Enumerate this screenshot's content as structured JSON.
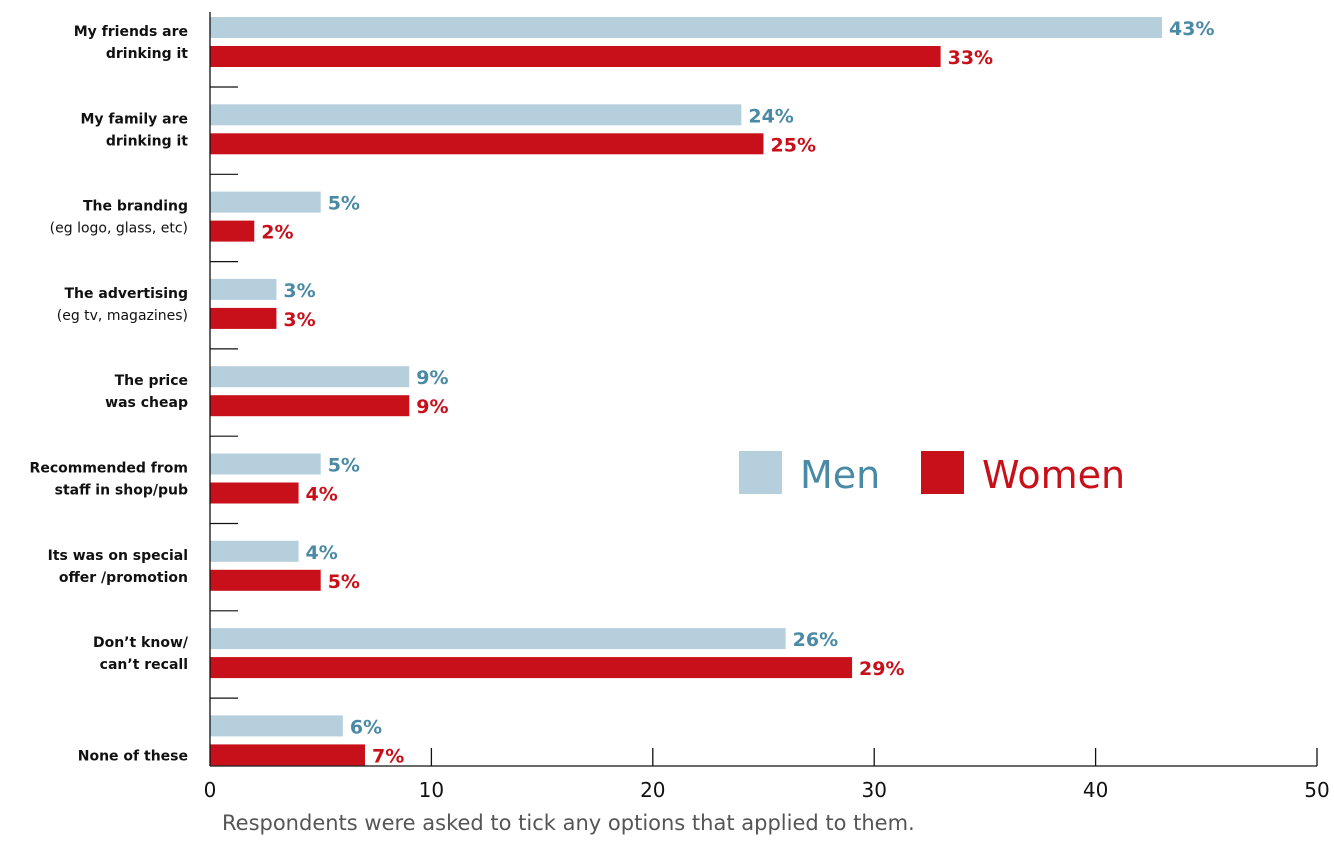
{
  "chart_data": {
    "type": "bar",
    "orientation": "horizontal",
    "categories": [
      {
        "bold": [
          "My friends are",
          "drinking it"
        ],
        "sub": ""
      },
      {
        "bold": [
          "My family are",
          "drinking it"
        ],
        "sub": ""
      },
      {
        "bold": [
          "The branding"
        ],
        "sub": "(eg logo, glass, etc)"
      },
      {
        "bold": [
          "The advertising"
        ],
        "sub": "(eg tv, magazines)"
      },
      {
        "bold": [
          "The price",
          "was cheap"
        ],
        "sub": ""
      },
      {
        "bold": [
          "Recommended from",
          "staff in shop/pub"
        ],
        "sub": ""
      },
      {
        "bold": [
          "Its was on special",
          "offer /promotion"
        ],
        "sub": ""
      },
      {
        "bold": [
          "Don’t know/",
          "can’t recall"
        ],
        "sub": ""
      },
      {
        "bold": [
          "None of these"
        ],
        "sub": ""
      }
    ],
    "series": [
      {
        "name": "Men",
        "color": "#b5cfdd",
        "label_color": "#4a8aa5",
        "values": [
          43,
          24,
          5,
          3,
          9,
          5,
          4,
          26,
          6
        ],
        "labels": [
          "43%",
          "24%",
          "5%",
          "3%",
          "9%",
          "5%",
          "4%",
          "26%",
          "6%"
        ]
      },
      {
        "name": "Women",
        "color": "#c8101a",
        "label_color": "#c8101a",
        "values": [
          33,
          25,
          2,
          3,
          9,
          4,
          5,
          29,
          7
        ],
        "labels": [
          "33%",
          "25%",
          "2%",
          "3%",
          "9%",
          "4%",
          "5%",
          "29%",
          "7%"
        ]
      }
    ],
    "xlim": [
      0,
      50
    ],
    "xticks": [
      "0",
      "10",
      "20",
      "30",
      "40",
      "50"
    ],
    "legend_position": "right-middle",
    "footnote": "Respondents were asked to tick any options that applied to them."
  }
}
